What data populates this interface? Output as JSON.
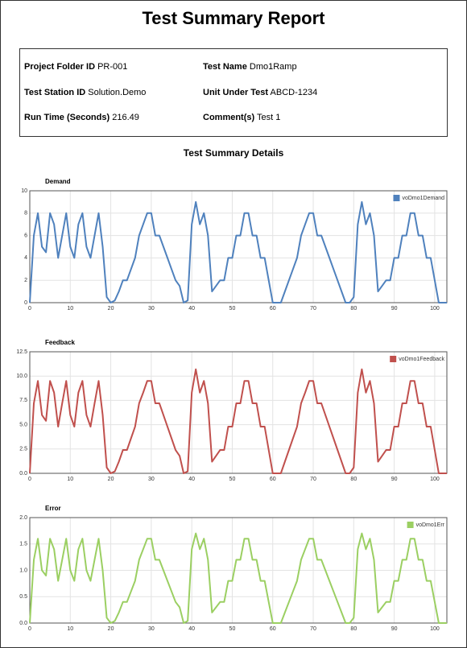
{
  "title": "Test Summary Report",
  "info": [
    {
      "label": "Project Folder ID",
      "value": "PR-001"
    },
    {
      "label": "Test Name",
      "value": "Dmo1Ramp"
    },
    {
      "label": "Test Station ID",
      "value": "Solution.Demo"
    },
    {
      "label": "Unit Under Test",
      "value": "ABCD-1234"
    },
    {
      "label": "Run Time (Seconds)",
      "value": "216.49"
    },
    {
      "label": "Comment(s)",
      "value": "Test 1"
    }
  ],
  "section_title": "Test Summary Details",
  "chart_data": [
    {
      "type": "line",
      "title": "Demand",
      "x": [
        0,
        1,
        2,
        3,
        4,
        5,
        6,
        7,
        8,
        9,
        10,
        11,
        12,
        13,
        14,
        15,
        16,
        17,
        18,
        19,
        20,
        21,
        22,
        23,
        24,
        25,
        26,
        27,
        28,
        29,
        30,
        31,
        32,
        33,
        34,
        35,
        36,
        37,
        38,
        39,
        40,
        41,
        42,
        43,
        44,
        45,
        46,
        47,
        48,
        49,
        50,
        51,
        52,
        53,
        54,
        55,
        56,
        57,
        58,
        59,
        60,
        61,
        62,
        63,
        64,
        65,
        66,
        67,
        68,
        69,
        70,
        71,
        72,
        73,
        74,
        75,
        76,
        77,
        78,
        79,
        80,
        81,
        82,
        83,
        84,
        85,
        86,
        87,
        88,
        89,
        90,
        91,
        92,
        93,
        94,
        95,
        96,
        97,
        98,
        99,
        100,
        101,
        102,
        103
      ],
      "xlim": [
        0,
        103
      ],
      "xticks": [
        0,
        10,
        20,
        30,
        40,
        50,
        60,
        70,
        80,
        90,
        100
      ],
      "ylim": [
        0,
        10
      ],
      "yticks": [
        0,
        2,
        4,
        6,
        8,
        10
      ],
      "grid": true,
      "legend": "top-right",
      "series": [
        {
          "name": "voDmo1Demand",
          "color": "#4f81bd",
          "values": [
            0,
            6,
            8,
            5,
            4.5,
            8,
            7,
            4,
            6,
            8,
            5,
            4,
            7,
            8,
            5,
            4,
            6,
            8,
            5,
            0.5,
            0,
            0.2,
            1,
            2,
            2,
            3,
            4,
            6,
            7,
            8,
            8,
            6,
            6,
            5,
            4,
            3,
            2,
            1.5,
            0,
            0.2,
            7,
            9,
            7,
            8,
            6,
            1,
            1.5,
            2,
            2,
            4,
            4,
            6,
            6,
            8,
            8,
            6,
            6,
            4,
            4,
            2,
            0,
            0,
            0,
            1,
            2,
            3,
            4,
            6,
            7,
            8,
            8,
            6,
            6,
            5,
            4,
            3,
            2,
            1,
            0,
            0,
            0.5,
            7,
            9,
            7,
            8,
            6,
            1,
            1.5,
            2,
            2,
            4,
            4,
            6,
            6,
            8,
            8,
            6,
            6,
            4,
            4,
            2,
            0,
            0,
            0
          ]
        }
      ]
    },
    {
      "type": "line",
      "title": "Feedback",
      "x": [
        0,
        1,
        2,
        3,
        4,
        5,
        6,
        7,
        8,
        9,
        10,
        11,
        12,
        13,
        14,
        15,
        16,
        17,
        18,
        19,
        20,
        21,
        22,
        23,
        24,
        25,
        26,
        27,
        28,
        29,
        30,
        31,
        32,
        33,
        34,
        35,
        36,
        37,
        38,
        39,
        40,
        41,
        42,
        43,
        44,
        45,
        46,
        47,
        48,
        49,
        50,
        51,
        52,
        53,
        54,
        55,
        56,
        57,
        58,
        59,
        60,
        61,
        62,
        63,
        64,
        65,
        66,
        67,
        68,
        69,
        70,
        71,
        72,
        73,
        74,
        75,
        76,
        77,
        78,
        79,
        80,
        81,
        82,
        83,
        84,
        85,
        86,
        87,
        88,
        89,
        90,
        91,
        92,
        93,
        94,
        95,
        96,
        97,
        98,
        99,
        100,
        101,
        102,
        103
      ],
      "xlim": [
        0,
        103
      ],
      "xticks": [
        0,
        10,
        20,
        30,
        40,
        50,
        60,
        70,
        80,
        90,
        100
      ],
      "ylim": [
        0,
        12.5
      ],
      "yticks": [
        {
          "value": 0,
          "label": "0.0"
        },
        2.5,
        {
          "value": 5,
          "label": "5.0"
        },
        7.5,
        {
          "value": 10,
          "label": "10.0"
        },
        12.5
      ],
      "grid": true,
      "legend": "top-right",
      "series": [
        {
          "name": "voDmo1Feedback",
          "color": "#c0504d",
          "values": [
            0,
            7.2,
            9.5,
            6,
            5.4,
            9.5,
            8.3,
            4.8,
            7.2,
            9.5,
            6,
            4.8,
            8.3,
            9.5,
            6,
            4.8,
            7.2,
            9.5,
            6,
            0.6,
            0,
            0.2,
            1.2,
            2.4,
            2.4,
            3.6,
            4.8,
            7.2,
            8.3,
            9.5,
            9.5,
            7.2,
            7.2,
            6,
            4.8,
            3.6,
            2.4,
            1.8,
            0,
            0.2,
            8.3,
            10.7,
            8.3,
            9.5,
            7.2,
            1.2,
            1.8,
            2.4,
            2.4,
            4.8,
            4.8,
            7.2,
            7.2,
            9.5,
            9.5,
            7.2,
            7.2,
            4.8,
            4.8,
            2.4,
            0,
            0,
            0,
            1.2,
            2.4,
            3.6,
            4.8,
            7.2,
            8.3,
            9.5,
            9.5,
            7.2,
            7.2,
            6,
            4.8,
            3.6,
            2.4,
            1.2,
            0,
            0,
            0.6,
            8.3,
            10.7,
            8.3,
            9.5,
            7.2,
            1.2,
            1.8,
            2.4,
            2.4,
            4.8,
            4.8,
            7.2,
            7.2,
            9.5,
            9.5,
            7.2,
            7.2,
            4.8,
            4.8,
            2.4,
            0,
            0,
            0
          ]
        }
      ]
    },
    {
      "type": "line",
      "title": "Error",
      "x": [
        0,
        1,
        2,
        3,
        4,
        5,
        6,
        7,
        8,
        9,
        10,
        11,
        12,
        13,
        14,
        15,
        16,
        17,
        18,
        19,
        20,
        21,
        22,
        23,
        24,
        25,
        26,
        27,
        28,
        29,
        30,
        31,
        32,
        33,
        34,
        35,
        36,
        37,
        38,
        39,
        40,
        41,
        42,
        43,
        44,
        45,
        46,
        47,
        48,
        49,
        50,
        51,
        52,
        53,
        54,
        55,
        56,
        57,
        58,
        59,
        60,
        61,
        62,
        63,
        64,
        65,
        66,
        67,
        68,
        69,
        70,
        71,
        72,
        73,
        74,
        75,
        76,
        77,
        78,
        79,
        80,
        81,
        82,
        83,
        84,
        85,
        86,
        87,
        88,
        89,
        90,
        91,
        92,
        93,
        94,
        95,
        96,
        97,
        98,
        99,
        100,
        101,
        102,
        103
      ],
      "xlim": [
        0,
        103
      ],
      "xticks": [
        0,
        10,
        20,
        30,
        40,
        50,
        60,
        70,
        80,
        90,
        100
      ],
      "ylim": [
        0,
        2
      ],
      "yticks": [
        {
          "value": 0,
          "label": "0.0"
        },
        0.5,
        {
          "value": 1,
          "label": "1.0"
        },
        1.5,
        {
          "value": 2,
          "label": "2.0"
        }
      ],
      "grid": true,
      "legend": "top-right",
      "series": [
        {
          "name": "voDmo1Err",
          "color": "#9bcf62",
          "values": [
            0,
            1.2,
            1.6,
            1,
            0.9,
            1.6,
            1.4,
            0.8,
            1.2,
            1.6,
            1,
            0.8,
            1.4,
            1.6,
            1,
            0.8,
            1.2,
            1.6,
            1,
            0.1,
            0,
            0.04,
            0.2,
            0.4,
            0.4,
            0.6,
            0.8,
            1.2,
            1.4,
            1.6,
            1.6,
            1.2,
            1.2,
            1,
            0.8,
            0.6,
            0.4,
            0.3,
            0,
            0.04,
            1.4,
            1.7,
            1.4,
            1.6,
            1.2,
            0.2,
            0.3,
            0.4,
            0.4,
            0.8,
            0.8,
            1.2,
            1.2,
            1.6,
            1.6,
            1.2,
            1.2,
            0.8,
            0.8,
            0.4,
            0,
            0,
            0,
            0.2,
            0.4,
            0.6,
            0.8,
            1.2,
            1.4,
            1.6,
            1.6,
            1.2,
            1.2,
            1,
            0.8,
            0.6,
            0.4,
            0.2,
            0,
            0,
            0.1,
            1.4,
            1.7,
            1.4,
            1.6,
            1.2,
            0.2,
            0.3,
            0.4,
            0.4,
            0.8,
            0.8,
            1.2,
            1.2,
            1.6,
            1.6,
            1.2,
            1.2,
            0.8,
            0.8,
            0.4,
            0,
            0,
            0
          ]
        }
      ]
    }
  ]
}
